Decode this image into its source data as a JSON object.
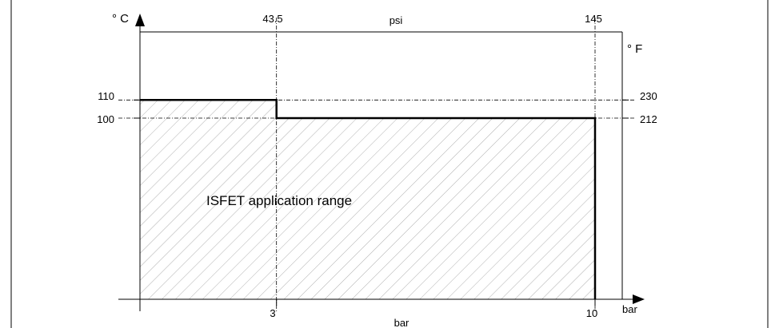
{
  "chart_data": {
    "type": "area",
    "title": "",
    "annotation": "ISFET application range",
    "x_axis_bottom": {
      "unit_label": "bar",
      "title": "bar",
      "ticks": [
        3,
        10
      ],
      "range": [
        0,
        10.6
      ]
    },
    "x_axis_top": {
      "title": "psi",
      "ticks": [
        "43.5",
        "145"
      ]
    },
    "y_axis_left": {
      "unit_label": "° C",
      "ticks": [
        110,
        100
      ],
      "range": [
        0,
        150
      ]
    },
    "y_axis_right": {
      "unit_label": "° F",
      "ticks": [
        "230",
        "212"
      ]
    },
    "series": [
      {
        "points": [
          {
            "x": 0,
            "y": 110
          },
          {
            "x": 3,
            "y": 110
          },
          {
            "x": 3,
            "y": 100
          },
          {
            "x": 10,
            "y": 100
          },
          {
            "x": 10,
            "y": 0
          }
        ]
      }
    ],
    "hatch_color": "#b0b0b0",
    "line_color": "#000000",
    "grid": false
  }
}
